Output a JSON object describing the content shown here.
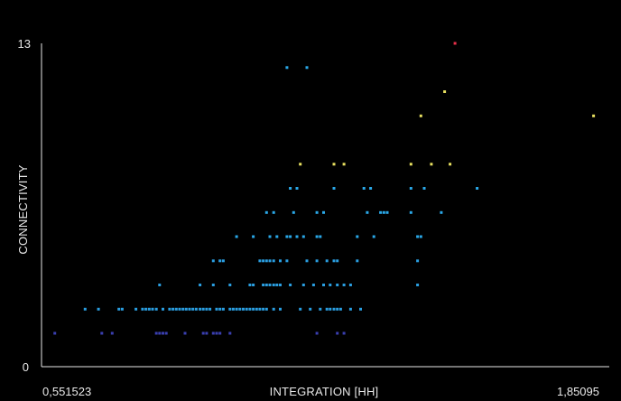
{
  "chart_data": {
    "type": "scatter",
    "title": "",
    "xlabel": "INTEGRATION [HH]",
    "ylabel": "CONNECTIVITY",
    "x_tick_labels": [
      "0,551523",
      "1,85095"
    ],
    "y_tick_labels": [
      "0",
      "13"
    ],
    "xlim": [
      0.551523,
      1.85095
    ],
    "ylim": [
      0,
      13
    ],
    "grid": false,
    "legend": "none",
    "color_scale": {
      "1": "#3a3fb0",
      "2": "#2a9ee0",
      "3": "#2a9ee0",
      "4": "#2a9ee0",
      "5": "#2aa8e8",
      "6": "#2aa8e8",
      "7": "#2aa8e8",
      "8": "#e8e060",
      "9": "#e8e060",
      "10": "#e8e060",
      "11": "#e8e060",
      "13": "#e8304a"
    },
    "points": [
      {
        "x": 0.553,
        "y": 1
      },
      {
        "x": 0.666,
        "y": 1
      },
      {
        "x": 0.691,
        "y": 1
      },
      {
        "x": 0.797,
        "y": 1
      },
      {
        "x": 0.805,
        "y": 1
      },
      {
        "x": 0.813,
        "y": 1
      },
      {
        "x": 0.821,
        "y": 1
      },
      {
        "x": 0.866,
        "y": 1
      },
      {
        "x": 0.91,
        "y": 1
      },
      {
        "x": 0.918,
        "y": 1
      },
      {
        "x": 0.934,
        "y": 1
      },
      {
        "x": 0.942,
        "y": 1
      },
      {
        "x": 0.95,
        "y": 1
      },
      {
        "x": 0.974,
        "y": 1
      },
      {
        "x": 1.183,
        "y": 1
      },
      {
        "x": 1.232,
        "y": 1
      },
      {
        "x": 1.248,
        "y": 1
      },
      {
        "x": 0.626,
        "y": 2
      },
      {
        "x": 0.658,
        "y": 2
      },
      {
        "x": 0.707,
        "y": 2
      },
      {
        "x": 0.715,
        "y": 2
      },
      {
        "x": 0.748,
        "y": 2
      },
      {
        "x": 0.764,
        "y": 2
      },
      {
        "x": 0.772,
        "y": 2
      },
      {
        "x": 0.78,
        "y": 2
      },
      {
        "x": 0.788,
        "y": 2
      },
      {
        "x": 0.797,
        "y": 2
      },
      {
        "x": 0.813,
        "y": 2
      },
      {
        "x": 0.829,
        "y": 2
      },
      {
        "x": 0.837,
        "y": 2
      },
      {
        "x": 0.845,
        "y": 2
      },
      {
        "x": 0.853,
        "y": 2
      },
      {
        "x": 0.861,
        "y": 2
      },
      {
        "x": 0.869,
        "y": 2
      },
      {
        "x": 0.877,
        "y": 2
      },
      {
        "x": 0.885,
        "y": 2
      },
      {
        "x": 0.893,
        "y": 2
      },
      {
        "x": 0.902,
        "y": 2
      },
      {
        "x": 0.91,
        "y": 2
      },
      {
        "x": 0.918,
        "y": 2
      },
      {
        "x": 0.926,
        "y": 2
      },
      {
        "x": 0.942,
        "y": 2
      },
      {
        "x": 0.95,
        "y": 2
      },
      {
        "x": 0.958,
        "y": 2
      },
      {
        "x": 0.974,
        "y": 2
      },
      {
        "x": 0.982,
        "y": 2
      },
      {
        "x": 0.99,
        "y": 2
      },
      {
        "x": 0.998,
        "y": 2
      },
      {
        "x": 1.006,
        "y": 2
      },
      {
        "x": 1.014,
        "y": 2
      },
      {
        "x": 1.022,
        "y": 2
      },
      {
        "x": 1.03,
        "y": 2
      },
      {
        "x": 1.038,
        "y": 2
      },
      {
        "x": 1.046,
        "y": 2
      },
      {
        "x": 1.054,
        "y": 2
      },
      {
        "x": 1.062,
        "y": 2
      },
      {
        "x": 1.079,
        "y": 2
      },
      {
        "x": 1.095,
        "y": 2
      },
      {
        "x": 1.143,
        "y": 2
      },
      {
        "x": 1.167,
        "y": 2
      },
      {
        "x": 1.191,
        "y": 2
      },
      {
        "x": 1.207,
        "y": 2
      },
      {
        "x": 1.215,
        "y": 2
      },
      {
        "x": 1.224,
        "y": 2
      },
      {
        "x": 1.232,
        "y": 2
      },
      {
        "x": 1.24,
        "y": 2
      },
      {
        "x": 1.264,
        "y": 2
      },
      {
        "x": 1.288,
        "y": 2
      },
      {
        "x": 0.805,
        "y": 3
      },
      {
        "x": 0.902,
        "y": 3
      },
      {
        "x": 0.934,
        "y": 3
      },
      {
        "x": 0.974,
        "y": 3
      },
      {
        "x": 1.022,
        "y": 3
      },
      {
        "x": 1.03,
        "y": 3
      },
      {
        "x": 1.054,
        "y": 3
      },
      {
        "x": 1.062,
        "y": 3
      },
      {
        "x": 1.07,
        "y": 3
      },
      {
        "x": 1.079,
        "y": 3
      },
      {
        "x": 1.087,
        "y": 3
      },
      {
        "x": 1.095,
        "y": 3
      },
      {
        "x": 1.119,
        "y": 3
      },
      {
        "x": 1.151,
        "y": 3
      },
      {
        "x": 1.175,
        "y": 3
      },
      {
        "x": 1.199,
        "y": 3
      },
      {
        "x": 1.215,
        "y": 3
      },
      {
        "x": 1.232,
        "y": 3
      },
      {
        "x": 1.248,
        "y": 3
      },
      {
        "x": 1.264,
        "y": 3
      },
      {
        "x": 1.425,
        "y": 3
      },
      {
        "x": 0.934,
        "y": 4
      },
      {
        "x": 0.95,
        "y": 4
      },
      {
        "x": 0.958,
        "y": 4
      },
      {
        "x": 1.046,
        "y": 4
      },
      {
        "x": 1.054,
        "y": 4
      },
      {
        "x": 1.062,
        "y": 4
      },
      {
        "x": 1.07,
        "y": 4
      },
      {
        "x": 1.079,
        "y": 4
      },
      {
        "x": 1.095,
        "y": 4
      },
      {
        "x": 1.111,
        "y": 4
      },
      {
        "x": 1.159,
        "y": 4
      },
      {
        "x": 1.183,
        "y": 4
      },
      {
        "x": 1.207,
        "y": 4
      },
      {
        "x": 1.224,
        "y": 4
      },
      {
        "x": 1.232,
        "y": 4
      },
      {
        "x": 1.28,
        "y": 4
      },
      {
        "x": 1.425,
        "y": 4
      },
      {
        "x": 0.99,
        "y": 5
      },
      {
        "x": 1.03,
        "y": 5
      },
      {
        "x": 1.07,
        "y": 5
      },
      {
        "x": 1.087,
        "y": 5
      },
      {
        "x": 1.111,
        "y": 5
      },
      {
        "x": 1.119,
        "y": 5
      },
      {
        "x": 1.135,
        "y": 5
      },
      {
        "x": 1.151,
        "y": 5
      },
      {
        "x": 1.183,
        "y": 5
      },
      {
        "x": 1.191,
        "y": 5
      },
      {
        "x": 1.28,
        "y": 5
      },
      {
        "x": 1.32,
        "y": 5
      },
      {
        "x": 1.425,
        "y": 5
      },
      {
        "x": 1.433,
        "y": 5
      },
      {
        "x": 1.062,
        "y": 6
      },
      {
        "x": 1.079,
        "y": 6
      },
      {
        "x": 1.127,
        "y": 6
      },
      {
        "x": 1.183,
        "y": 6
      },
      {
        "x": 1.199,
        "y": 6
      },
      {
        "x": 1.304,
        "y": 6
      },
      {
        "x": 1.336,
        "y": 6
      },
      {
        "x": 1.344,
        "y": 6
      },
      {
        "x": 1.352,
        "y": 6
      },
      {
        "x": 1.409,
        "y": 6
      },
      {
        "x": 1.482,
        "y": 6
      },
      {
        "x": 1.119,
        "y": 7
      },
      {
        "x": 1.135,
        "y": 7
      },
      {
        "x": 1.224,
        "y": 7
      },
      {
        "x": 1.296,
        "y": 7
      },
      {
        "x": 1.312,
        "y": 7
      },
      {
        "x": 1.409,
        "y": 7
      },
      {
        "x": 1.441,
        "y": 7
      },
      {
        "x": 1.568,
        "y": 7
      },
      {
        "x": 1.143,
        "y": 8
      },
      {
        "x": 1.224,
        "y": 8
      },
      {
        "x": 1.248,
        "y": 8
      },
      {
        "x": 1.409,
        "y": 8
      },
      {
        "x": 1.458,
        "y": 8
      },
      {
        "x": 1.503,
        "y": 8
      },
      {
        "x": 1.433,
        "y": 10
      },
      {
        "x": 1.848,
        "y": 10
      },
      {
        "x": 1.49,
        "y": 11
      },
      {
        "x": 1.111,
        "y": 12
      },
      {
        "x": 1.159,
        "y": 12
      },
      {
        "x": 1.515,
        "y": 13
      }
    ]
  }
}
